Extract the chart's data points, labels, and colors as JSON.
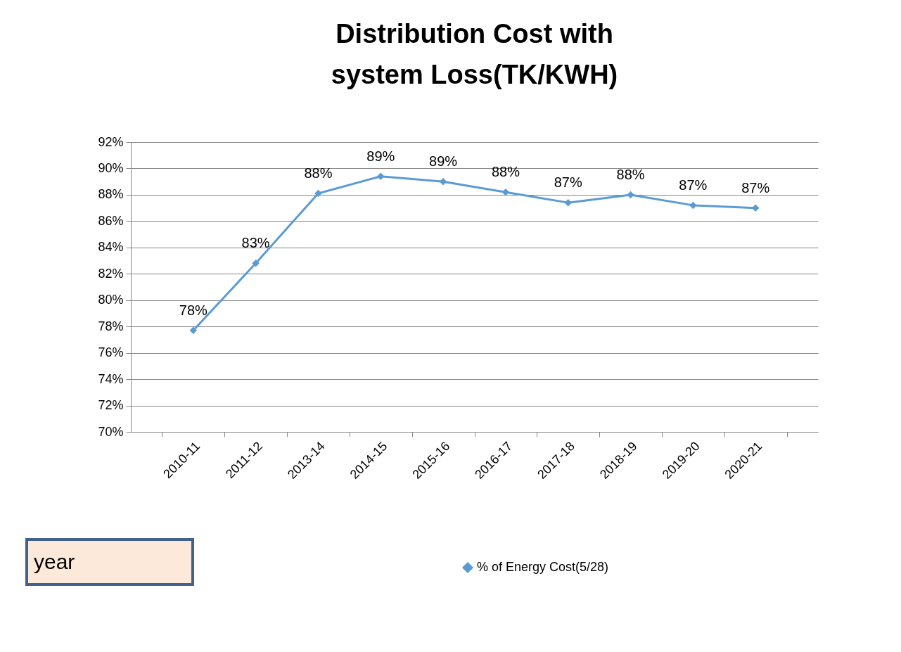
{
  "chart_data": {
    "type": "line",
    "title": [
      "Distribution Cost with",
      "system Loss(TK/KWH)"
    ],
    "categories": [
      "2010-11",
      "2011-12",
      "2013-14",
      "2014-15",
      "2015-16",
      "2016-17",
      "2017-18",
      "2018-19",
      "2019-20",
      "2020-21"
    ],
    "series": [
      {
        "name": "% of Energy Cost(5/28)",
        "color": "#5b9bd5",
        "values": [
          77.7,
          82.8,
          88.1,
          89.4,
          89.0,
          88.2,
          87.4,
          88.0,
          87.2,
          87.0
        ],
        "value_labels": [
          "78%",
          "83%",
          "88%",
          "89%",
          "89%",
          "88%",
          "87%",
          "88%",
          "87%",
          "87%"
        ]
      }
    ],
    "ylim": [
      70,
      92
    ],
    "yticks": [
      {
        "value": 70,
        "label": "70%"
      },
      {
        "value": 72,
        "label": "72%"
      },
      {
        "value": 74,
        "label": "74%"
      },
      {
        "value": 76,
        "label": "76%"
      },
      {
        "value": 78,
        "label": "78%"
      },
      {
        "value": 80,
        "label": "80%"
      },
      {
        "value": 82,
        "label": "82%"
      },
      {
        "value": 84,
        "label": "84%"
      },
      {
        "value": 86,
        "label": "86%"
      },
      {
        "value": 88,
        "label": "88%"
      },
      {
        "value": 90,
        "label": "90%"
      },
      {
        "value": 92,
        "label": "92%"
      }
    ],
    "grid": "y",
    "legend": "bottom",
    "marker": "diamond",
    "line_style": "solid",
    "annotations": [
      "year"
    ]
  }
}
